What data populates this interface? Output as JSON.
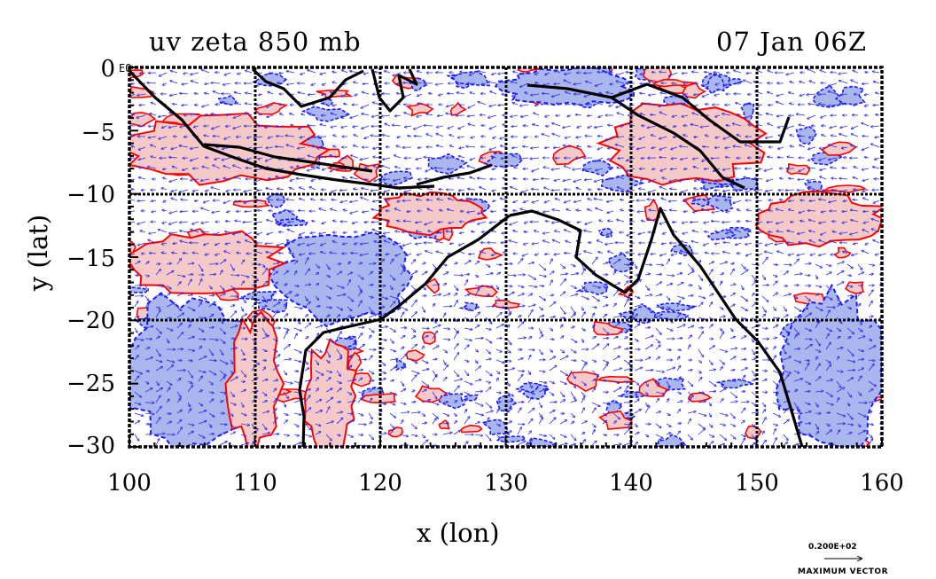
{
  "title_left": "uv zeta 850 mb",
  "title_right": "07 Jan 06Z",
  "xlabel": "x (lon)",
  "ylabel": "y (lat)",
  "x_ticks": [
    "100",
    "110",
    "120",
    "130",
    "140",
    "150",
    "160"
  ],
  "y_ticks": [
    "0",
    "−5",
    "−10",
    "−15",
    "−20",
    "−25",
    "−30"
  ],
  "eq_label": "EQ",
  "vector_scale_value": "0.200E+02",
  "vector_scale_label": "MAXIMUM VECTOR",
  "colors": {
    "positive_fill": "#f6c9c9",
    "positive_contour": "#ff0000",
    "negative_fill": "#aab6ee",
    "negative_contour": "#1a1aff",
    "vectors": "#2a2aee",
    "coast": "#000000"
  },
  "chart_data": {
    "type": "map",
    "projection": "lat-lon",
    "xlim": [
      100,
      160
    ],
    "ylim": [
      -30,
      0
    ],
    "grid": true,
    "grid_lons": [
      110,
      120,
      130,
      140,
      150
    ],
    "grid_lats": [
      -10,
      -20
    ],
    "field": "relative vorticity (zeta) at 850 mb with wind vectors (u,v)",
    "regions_positive": [
      {
        "lon": [
          100,
          115
        ],
        "lat": [
          -4,
          -9
        ]
      },
      {
        "lon": [
          100,
          112
        ],
        "lat": [
          -13,
          -18
        ]
      },
      {
        "lon": [
          108,
          112
        ],
        "lat": [
          -20,
          -30
        ]
      },
      {
        "lon": [
          114,
          118
        ],
        "lat": [
          -22,
          -30
        ]
      },
      {
        "lon": [
          120,
          128
        ],
        "lat": [
          -10,
          -13
        ]
      },
      {
        "lon": [
          138,
          150
        ],
        "lat": [
          -3,
          -9
        ]
      },
      {
        "lon": [
          150,
          160
        ],
        "lat": [
          -10,
          -14
        ]
      }
    ],
    "regions_negative": [
      {
        "lon": [
          100,
          110
        ],
        "lat": [
          -18,
          -30
        ]
      },
      {
        "lon": [
          112,
          122
        ],
        "lat": [
          -13,
          -20
        ]
      },
      {
        "lon": [
          130,
          140
        ],
        "lat": [
          0,
          -3
        ]
      },
      {
        "lon": [
          152,
          160
        ],
        "lat": [
          -18,
          -30
        ]
      }
    ]
  }
}
